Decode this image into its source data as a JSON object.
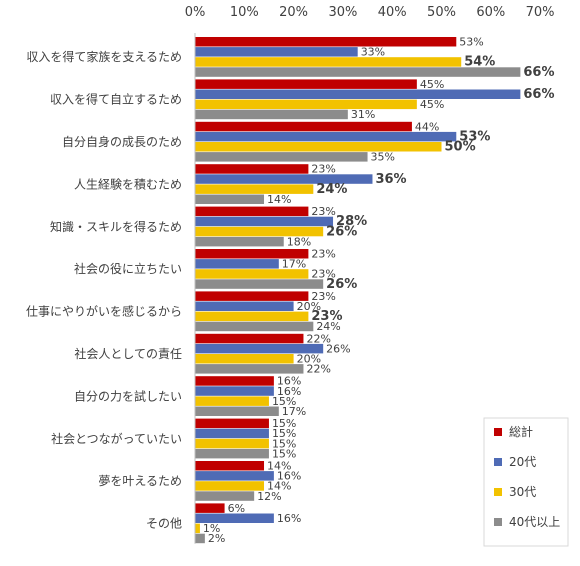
{
  "chart_data": {
    "type": "bar",
    "orientation": "horizontal",
    "categories": [
      "収入を得て家族を支えるため",
      "収入を得て自立するため",
      "自分自身の成長のため",
      "人生経験を積むため",
      "知識・スキルを得るため",
      "社会の役に立ちたい",
      "仕事にやりがいを感じるから",
      "社会人としての責任",
      "自分の力を試したい",
      "社会とつながっていたい",
      "夢を叶えるため",
      "その他"
    ],
    "series": [
      {
        "name": "総計",
        "color": "#C00000",
        "values": [
          53,
          45,
          44,
          23,
          23,
          23,
          23,
          22,
          16,
          15,
          14,
          6
        ]
      },
      {
        "name": "20代",
        "color": "#4F6BB5",
        "values": [
          33,
          66,
          53,
          36,
          28,
          17,
          20,
          26,
          16,
          15,
          16,
          16
        ]
      },
      {
        "name": "30代",
        "color": "#F2C200",
        "values": [
          54,
          45,
          50,
          24,
          26,
          23,
          23,
          20,
          15,
          15,
          14,
          1
        ]
      },
      {
        "name": "40代以上",
        "color": "#8C8C8C",
        "values": [
          66,
          31,
          35,
          14,
          18,
          26,
          24,
          22,
          17,
          15,
          12,
          2
        ]
      }
    ],
    "highlighted": [
      [
        false,
        false,
        false,
        false,
        false,
        false,
        false,
        false,
        false,
        false,
        false,
        false
      ],
      [
        false,
        true,
        true,
        true,
        true,
        false,
        false,
        false,
        false,
        false,
        false,
        false
      ],
      [
        true,
        false,
        true,
        true,
        true,
        false,
        true,
        false,
        false,
        false,
        false,
        false
      ],
      [
        true,
        false,
        false,
        false,
        false,
        true,
        false,
        false,
        false,
        false,
        false,
        false
      ]
    ],
    "value_suffix": "%",
    "xlim": [
      0,
      70
    ],
    "xticks": [
      "0%",
      "10%",
      "20%",
      "30%",
      "40%",
      "50%",
      "60%",
      "70%"
    ],
    "xaxis_position": "top",
    "grid": false,
    "legend_position": "bottom-right"
  }
}
